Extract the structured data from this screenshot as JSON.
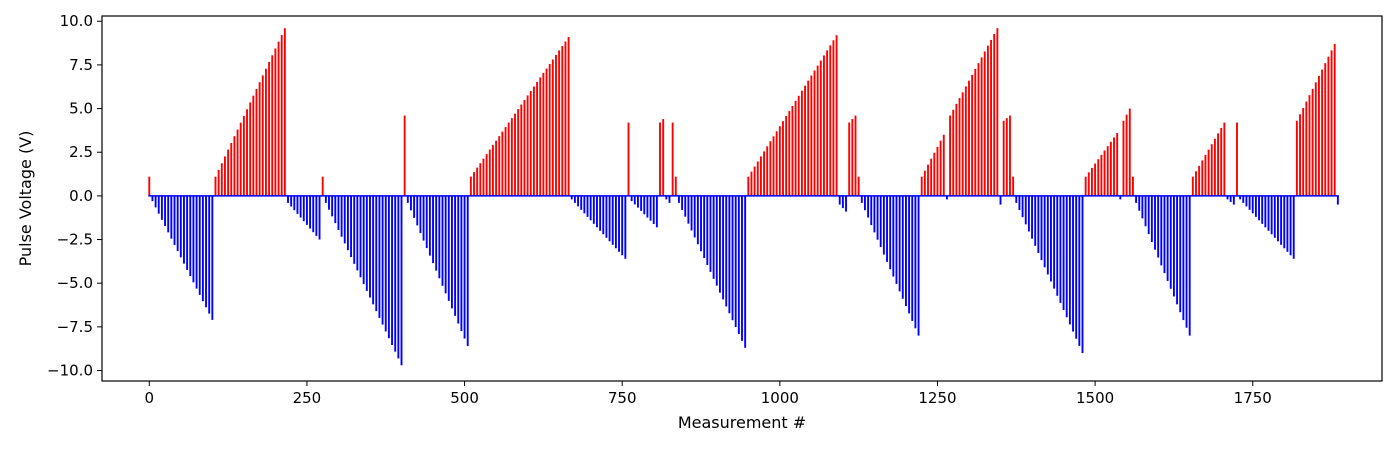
{
  "chart_data": {
    "type": "bar",
    "title": "",
    "xlabel": "Measurement #",
    "ylabel": "Pulse Voltage (V)",
    "xlim": [
      -75,
      1955
    ],
    "ylim": [
      -10.6,
      10.3
    ],
    "xticks": [
      0,
      250,
      500,
      750,
      1000,
      1250,
      1500,
      1750
    ],
    "yticks": [
      -10.0,
      -7.5,
      -5.0,
      -2.5,
      0.0,
      2.5,
      5.0,
      7.5,
      10.0
    ],
    "grid": false,
    "bar_interval": 5,
    "colors": {
      "positive": "#ff0000",
      "negative": "#0000ff"
    },
    "segments": [
      {
        "start": 0,
        "end": 0,
        "from": 1.1,
        "to": 1.1
      },
      {
        "start": 5,
        "end": 100,
        "from": -0.3,
        "to": -7.1
      },
      {
        "start": 105,
        "end": 215,
        "from": 1.1,
        "to": 9.6
      },
      {
        "start": 220,
        "end": 270,
        "from": -0.4,
        "to": -2.5
      },
      {
        "start": 275,
        "end": 275,
        "from": 1.1,
        "to": 1.1
      },
      {
        "start": 280,
        "end": 400,
        "from": -0.4,
        "to": -9.7
      },
      {
        "start": 405,
        "end": 405,
        "from": 4.6,
        "to": 4.6
      },
      {
        "start": 410,
        "end": 505,
        "from": -0.4,
        "to": -8.6
      },
      {
        "start": 510,
        "end": 665,
        "from": 1.1,
        "to": 9.1
      },
      {
        "start": 670,
        "end": 755,
        "from": -0.2,
        "to": -3.6
      },
      {
        "start": 760,
        "end": 760,
        "from": 4.2,
        "to": 4.2
      },
      {
        "start": 765,
        "end": 805,
        "from": -0.3,
        "to": -1.8
      },
      {
        "start": 810,
        "end": 815,
        "from": 4.2,
        "to": 4.4
      },
      {
        "start": 820,
        "end": 825,
        "from": -0.2,
        "to": -0.4
      },
      {
        "start": 830,
        "end": 830,
        "from": 4.2,
        "to": 4.2
      },
      {
        "start": 835,
        "end": 835,
        "from": 1.1,
        "to": 1.1
      },
      {
        "start": 840,
        "end": 945,
        "from": -0.4,
        "to": -8.7
      },
      {
        "start": 950,
        "end": 1090,
        "from": 1.1,
        "to": 9.2
      },
      {
        "start": 1095,
        "end": 1105,
        "from": -0.5,
        "to": -0.9
      },
      {
        "start": 1110,
        "end": 1120,
        "from": 4.2,
        "to": 4.6
      },
      {
        "start": 1125,
        "end": 1125,
        "from": 1.1,
        "to": 1.1
      },
      {
        "start": 1130,
        "end": 1220,
        "from": -0.4,
        "to": -8.0
      },
      {
        "start": 1225,
        "end": 1260,
        "from": 1.1,
        "to": 3.5
      },
      {
        "start": 1265,
        "end": 1265,
        "from": -0.2,
        "to": -0.2
      },
      {
        "start": 1270,
        "end": 1345,
        "from": 4.6,
        "to": 9.6
      },
      {
        "start": 1350,
        "end": 1350,
        "from": -0.5,
        "to": -0.5
      },
      {
        "start": 1355,
        "end": 1365,
        "from": 4.3,
        "to": 4.6
      },
      {
        "start": 1370,
        "end": 1370,
        "from": 1.1,
        "to": 1.1
      },
      {
        "start": 1375,
        "end": 1480,
        "from": -0.4,
        "to": -9.0
      },
      {
        "start": 1485,
        "end": 1535,
        "from": 1.1,
        "to": 3.6
      },
      {
        "start": 1540,
        "end": 1540,
        "from": -0.2,
        "to": -0.2
      },
      {
        "start": 1545,
        "end": 1555,
        "from": 4.3,
        "to": 5.0
      },
      {
        "start": 1560,
        "end": 1560,
        "from": 1.1,
        "to": 1.1
      },
      {
        "start": 1565,
        "end": 1650,
        "from": -0.4,
        "to": -8.0
      },
      {
        "start": 1655,
        "end": 1705,
        "from": 1.1,
        "to": 4.2
      },
      {
        "start": 1710,
        "end": 1720,
        "from": -0.2,
        "to": -0.5
      },
      {
        "start": 1725,
        "end": 1725,
        "from": 4.2,
        "to": 4.2
      },
      {
        "start": 1730,
        "end": 1815,
        "from": -0.2,
        "to": -3.6
      },
      {
        "start": 1820,
        "end": 1880,
        "from": 4.3,
        "to": 8.7
      },
      {
        "start": 1885,
        "end": 1885,
        "from": -0.5,
        "to": -0.5
      }
    ]
  }
}
